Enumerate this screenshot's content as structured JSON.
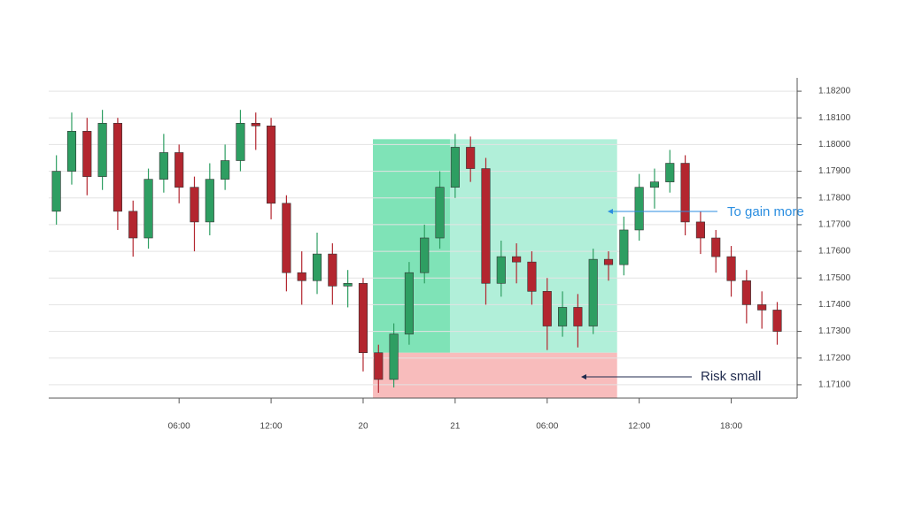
{
  "chart_data": {
    "type": "candlestick",
    "x": [
      -2,
      -1,
      0,
      1,
      2,
      3,
      4,
      5,
      6,
      7,
      8,
      9,
      10,
      11,
      12,
      13,
      14,
      15,
      16,
      17,
      18,
      19,
      20,
      21,
      22,
      23,
      24,
      25,
      26,
      27,
      28,
      29,
      30,
      31,
      32,
      33,
      34,
      35,
      36,
      37,
      38,
      39,
      40,
      41,
      42,
      43,
      44,
      45
    ],
    "open": [
      1.1775,
      1.179,
      1.1805,
      1.1788,
      1.1808,
      1.1775,
      1.1765,
      1.1787,
      1.1797,
      1.1784,
      1.1771,
      1.1787,
      1.1794,
      1.1808,
      1.1807,
      1.1778,
      1.1752,
      1.1749,
      1.1759,
      1.1747,
      1.1748,
      1.1722,
      1.1712,
      1.1729,
      1.1752,
      1.1765,
      1.1784,
      1.1799,
      1.1791,
      1.1748,
      1.1758,
      1.1756,
      1.1745,
      1.1732,
      1.1739,
      1.1732,
      1.1757,
      1.1755,
      1.1768,
      1.1784,
      1.1786,
      1.1793,
      1.1771,
      1.1765,
      1.1758,
      1.1749,
      1.174,
      1.1738
    ],
    "high": [
      1.1796,
      1.1812,
      1.181,
      1.1813,
      1.181,
      1.1779,
      1.1791,
      1.1804,
      1.18,
      1.1788,
      1.1793,
      1.18,
      1.1813,
      1.1812,
      1.181,
      1.1781,
      1.176,
      1.1767,
      1.1763,
      1.1753,
      1.175,
      1.1725,
      1.1733,
      1.1756,
      1.177,
      1.179,
      1.1804,
      1.1803,
      1.1795,
      1.1764,
      1.1763,
      1.176,
      1.175,
      1.1745,
      1.1744,
      1.1761,
      1.176,
      1.1773,
      1.1789,
      1.1791,
      1.1798,
      1.1796,
      1.1775,
      1.1768,
      1.1762,
      1.1753,
      1.1745,
      1.1741
    ],
    "low": [
      1.177,
      1.1785,
      1.1781,
      1.1783,
      1.1768,
      1.1758,
      1.1761,
      1.1782,
      1.1778,
      1.176,
      1.1766,
      1.1783,
      1.179,
      1.1798,
      1.1772,
      1.1745,
      1.174,
      1.1744,
      1.174,
      1.1739,
      1.1715,
      1.1707,
      1.1709,
      1.1725,
      1.1748,
      1.1761,
      1.178,
      1.1786,
      1.174,
      1.1743,
      1.1748,
      1.174,
      1.1723,
      1.1728,
      1.1724,
      1.1729,
      1.1749,
      1.1751,
      1.1764,
      1.1776,
      1.1782,
      1.1766,
      1.1759,
      1.1752,
      1.1743,
      1.1733,
      1.1731,
      1.1725
    ],
    "close": [
      1.179,
      1.1805,
      1.1788,
      1.1808,
      1.1775,
      1.1765,
      1.1787,
      1.1797,
      1.1784,
      1.1771,
      1.1787,
      1.1794,
      1.1808,
      1.1807,
      1.1778,
      1.1752,
      1.1749,
      1.1759,
      1.1747,
      1.1748,
      1.1722,
      1.1712,
      1.1729,
      1.1752,
      1.1765,
      1.1784,
      1.1799,
      1.1791,
      1.1748,
      1.1758,
      1.1756,
      1.1745,
      1.1732,
      1.1739,
      1.1732,
      1.1757,
      1.1755,
      1.1768,
      1.1784,
      1.1786,
      1.1793,
      1.1771,
      1.1765,
      1.1758,
      1.1749,
      1.174,
      1.1738,
      1.173
    ],
    "up_color": "#2e9e62",
    "down_color": "#b3262f",
    "xlim": [
      -2.5,
      46.3
    ],
    "ylim": [
      1.1705,
      1.1825
    ],
    "xticks": [
      {
        "value": 6,
        "label": "06:00"
      },
      {
        "value": 12,
        "label": "12:00"
      },
      {
        "value": 18,
        "label": "20"
      },
      {
        "value": 24,
        "label": "21"
      },
      {
        "value": 30,
        "label": "06:00"
      },
      {
        "value": 36,
        "label": "12:00"
      },
      {
        "value": 42,
        "label": "18:00"
      }
    ],
    "yticks": [
      {
        "value": 1.171,
        "label": "1.17100"
      },
      {
        "value": 1.172,
        "label": "1.17200"
      },
      {
        "value": 1.173,
        "label": "1.17300"
      },
      {
        "value": 1.174,
        "label": "1.17400"
      },
      {
        "value": 1.175,
        "label": "1.17500"
      },
      {
        "value": 1.176,
        "label": "1.17600"
      },
      {
        "value": 1.177,
        "label": "1.17700"
      },
      {
        "value": 1.178,
        "label": "1.17800"
      },
      {
        "value": 1.179,
        "label": "1.17900"
      },
      {
        "value": 1.18,
        "label": "1.18000"
      },
      {
        "value": 1.181,
        "label": "1.18100"
      },
      {
        "value": 1.182,
        "label": "1.18200"
      }
    ],
    "grid": true,
    "position": {
      "x_start": 18.64,
      "x_end": 34.56,
      "highlight_end": 23.66,
      "entry": 1.1722,
      "target": 1.1802,
      "stop": 1.1705,
      "target_color": "#b1efd9",
      "highlight_color": "#7fe3b7",
      "stop_color": "#f8bcbc"
    },
    "annotations": [
      {
        "text": "To gain more",
        "color": "#2b8ee0"
      },
      {
        "text": "Risk small",
        "color": "#1f2a4d"
      }
    ]
  }
}
